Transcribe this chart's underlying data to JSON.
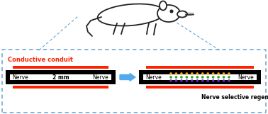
{
  "fig_width": 3.78,
  "fig_height": 1.61,
  "dpi": 100,
  "bg_color": "#ffffff",
  "dashed_box_color": "#5599cc",
  "conduit_label": "Conductive conduit",
  "conduit_label_color": "#ff2200",
  "nerve_label": "Nerve selective regeneration",
  "nerve_label_color": "#000000",
  "gap_label": "2 mm",
  "arrow_color": "#55aaee",
  "black": "#000000",
  "red": "#ff2200",
  "dot_colors_rows": [
    "#ffa500",
    "#22aa22",
    "#7722cc"
  ],
  "white": "#ffffff",
  "mouse_color": "#222222"
}
